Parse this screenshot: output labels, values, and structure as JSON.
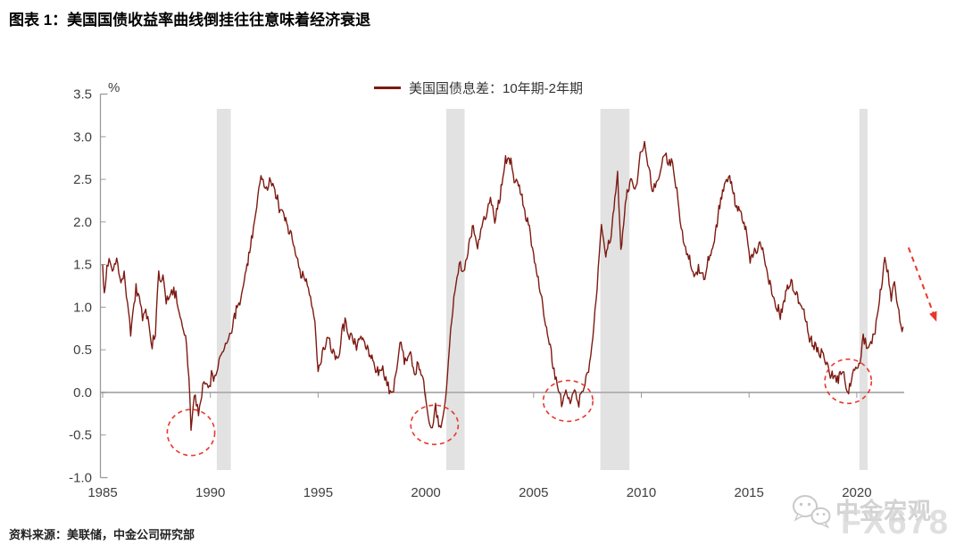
{
  "title": "图表 1：美国国债收益率曲线倒挂往往意味着经济衰退",
  "source": "资料来源：美联储，中金公司研究部",
  "watermark": {
    "icon": "wechat-icon",
    "name": "中金宏观",
    "brand": "FX678"
  },
  "chart_data": {
    "type": "line",
    "legend_label": "美国国债息差：10年期-2年期",
    "unit_label": "%",
    "line_color": "#7d1a12",
    "band_color": "#e2e2e2",
    "highlight_color": "#e8372c",
    "axis_color": "#9a9a9a",
    "zero_line_color": "#b3b3b3",
    "tick_label_color": "#3f3f3f",
    "ylim": [
      -1.0,
      3.5
    ],
    "xlim": [
      1985,
      2022.2
    ],
    "yticks": [
      "3.5",
      "3.0",
      "2.5",
      "2.0",
      "1.5",
      "1.0",
      "0.5",
      "0.0",
      "-0.5",
      "-1.0"
    ],
    "xticks": [
      "1985",
      "1990",
      "1995",
      "2000",
      "2005",
      "2010",
      "2015",
      "2020"
    ],
    "grid": "zero-line-only",
    "legend_position": "top-center",
    "recession_bands": [
      [
        1990.3,
        1990.95
      ],
      [
        2000.95,
        2001.8
      ],
      [
        2008.1,
        2009.45
      ],
      [
        2020.12,
        2020.5
      ]
    ],
    "inversion_circles": [
      {
        "x": 1989.1,
        "y": -0.47,
        "rx_years": 1.1,
        "ry_pct": 0.27
      },
      {
        "x": 2000.4,
        "y": -0.38,
        "rx_years": 1.1,
        "ry_pct": 0.23
      },
      {
        "x": 2006.6,
        "y": -0.1,
        "rx_years": 1.15,
        "ry_pct": 0.24
      },
      {
        "x": 2019.6,
        "y": 0.13,
        "rx_years": 1.08,
        "ry_pct": 0.26
      }
    ],
    "trend_arrow": {
      "from": [
        2022.4,
        1.7
      ],
      "to": [
        2023.7,
        0.83
      ]
    },
    "series": [
      {
        "name": "美国国债息差：10年期-2年期",
        "points": [
          [
            1985.0,
            1.5
          ],
          [
            1985.08,
            1.18
          ],
          [
            1985.2,
            1.48
          ],
          [
            1985.35,
            1.55
          ],
          [
            1985.5,
            1.42
          ],
          [
            1985.65,
            1.55
          ],
          [
            1985.8,
            1.3
          ],
          [
            1986.0,
            1.32
          ],
          [
            1986.15,
            0.95
          ],
          [
            1986.3,
            0.62
          ],
          [
            1986.45,
            0.95
          ],
          [
            1986.55,
            1.2
          ],
          [
            1986.7,
            1.05
          ],
          [
            1986.85,
            0.85
          ],
          [
            1987.0,
            0.92
          ],
          [
            1987.15,
            0.75
          ],
          [
            1987.3,
            0.55
          ],
          [
            1987.45,
            0.65
          ],
          [
            1987.6,
            1.4
          ],
          [
            1987.7,
            1.2
          ],
          [
            1987.8,
            1.35
          ],
          [
            1987.95,
            1.0
          ],
          [
            1988.1,
            1.05
          ],
          [
            1988.25,
            1.15
          ],
          [
            1988.4,
            1.1
          ],
          [
            1988.55,
            0.85
          ],
          [
            1988.7,
            0.72
          ],
          [
            1988.85,
            0.62
          ],
          [
            1989.0,
            0.1
          ],
          [
            1989.1,
            -0.45
          ],
          [
            1989.2,
            -0.2
          ],
          [
            1989.3,
            -0.05
          ],
          [
            1989.45,
            -0.25
          ],
          [
            1989.6,
            -0.05
          ],
          [
            1989.75,
            0.1
          ],
          [
            1989.9,
            0.05
          ],
          [
            1990.05,
            0.15
          ],
          [
            1990.2,
            0.1
          ],
          [
            1990.35,
            0.25
          ],
          [
            1990.55,
            0.4
          ],
          [
            1990.75,
            0.55
          ],
          [
            1990.95,
            0.65
          ],
          [
            1991.2,
            0.95
          ],
          [
            1991.45,
            1.15
          ],
          [
            1991.7,
            1.45
          ],
          [
            1991.95,
            1.85
          ],
          [
            1992.15,
            2.2
          ],
          [
            1992.35,
            2.6
          ],
          [
            1992.55,
            2.42
          ],
          [
            1992.75,
            2.55
          ],
          [
            1992.95,
            2.4
          ],
          [
            1993.2,
            2.2
          ],
          [
            1993.5,
            2.05
          ],
          [
            1993.8,
            1.8
          ],
          [
            1994.0,
            1.62
          ],
          [
            1994.2,
            1.35
          ],
          [
            1994.45,
            1.28
          ],
          [
            1994.65,
            1.1
          ],
          [
            1994.85,
            0.75
          ],
          [
            1995.0,
            0.18
          ],
          [
            1995.2,
            0.42
          ],
          [
            1995.45,
            0.58
          ],
          [
            1995.7,
            0.48
          ],
          [
            1995.9,
            0.35
          ],
          [
            1996.1,
            0.7
          ],
          [
            1996.25,
            0.82
          ],
          [
            1996.45,
            0.68
          ],
          [
            1996.7,
            0.55
          ],
          [
            1996.95,
            0.62
          ],
          [
            1997.2,
            0.5
          ],
          [
            1997.5,
            0.35
          ],
          [
            1997.8,
            0.22
          ],
          [
            1998.0,
            0.25
          ],
          [
            1998.2,
            0.12
          ],
          [
            1998.4,
            -0.03
          ],
          [
            1998.6,
            0.15
          ],
          [
            1998.8,
            0.58
          ],
          [
            1999.0,
            0.32
          ],
          [
            1999.25,
            0.45
          ],
          [
            1999.5,
            0.12
          ],
          [
            1999.65,
            0.33
          ],
          [
            1999.9,
            0.05
          ],
          [
            2000.05,
            -0.2
          ],
          [
            2000.25,
            -0.47
          ],
          [
            2000.45,
            -0.2
          ],
          [
            2000.65,
            -0.5
          ],
          [
            2000.85,
            -0.28
          ],
          [
            2001.0,
            0.15
          ],
          [
            2001.15,
            0.7
          ],
          [
            2001.35,
            1.2
          ],
          [
            2001.55,
            1.5
          ],
          [
            2001.75,
            1.35
          ],
          [
            2001.95,
            1.6
          ],
          [
            2002.2,
            1.95
          ],
          [
            2002.4,
            1.65
          ],
          [
            2002.6,
            1.95
          ],
          [
            2002.8,
            2.1
          ],
          [
            2003.0,
            2.3
          ],
          [
            2003.2,
            2.0
          ],
          [
            2003.45,
            2.35
          ],
          [
            2003.7,
            2.78
          ],
          [
            2003.95,
            2.7
          ],
          [
            2004.1,
            2.45
          ],
          [
            2004.3,
            2.5
          ],
          [
            2004.55,
            2.2
          ],
          [
            2004.8,
            1.95
          ],
          [
            2005.0,
            1.6
          ],
          [
            2005.3,
            1.18
          ],
          [
            2005.6,
            0.72
          ],
          [
            2005.9,
            0.28
          ],
          [
            2006.1,
            0.02
          ],
          [
            2006.3,
            -0.16
          ],
          [
            2006.5,
            0.02
          ],
          [
            2006.7,
            -0.12
          ],
          [
            2006.9,
            -0.04
          ],
          [
            2007.1,
            -0.16
          ],
          [
            2007.3,
            -0.03
          ],
          [
            2007.55,
            0.25
          ],
          [
            2007.75,
            0.65
          ],
          [
            2007.95,
            1.15
          ],
          [
            2008.15,
            1.95
          ],
          [
            2008.35,
            1.55
          ],
          [
            2008.6,
            1.85
          ],
          [
            2008.9,
            2.6
          ],
          [
            2009.05,
            1.6
          ],
          [
            2009.3,
            2.3
          ],
          [
            2009.55,
            2.55
          ],
          [
            2009.75,
            2.35
          ],
          [
            2009.95,
            2.75
          ],
          [
            2010.15,
            2.88
          ],
          [
            2010.35,
            2.6
          ],
          [
            2010.55,
            2.35
          ],
          [
            2010.75,
            2.45
          ],
          [
            2010.9,
            2.6
          ],
          [
            2011.1,
            2.85
          ],
          [
            2011.3,
            2.7
          ],
          [
            2011.5,
            2.6
          ],
          [
            2011.65,
            2.3
          ],
          [
            2011.8,
            1.95
          ],
          [
            2012.0,
            1.75
          ],
          [
            2012.2,
            1.55
          ],
          [
            2012.45,
            1.3
          ],
          [
            2012.65,
            1.45
          ],
          [
            2012.9,
            1.38
          ],
          [
            2013.1,
            1.6
          ],
          [
            2013.35,
            1.75
          ],
          [
            2013.6,
            2.2
          ],
          [
            2013.9,
            2.52
          ],
          [
            2014.1,
            2.6
          ],
          [
            2014.35,
            2.3
          ],
          [
            2014.6,
            2.15
          ],
          [
            2014.85,
            1.9
          ],
          [
            2015.05,
            1.5
          ],
          [
            2015.3,
            1.62
          ],
          [
            2015.55,
            1.7
          ],
          [
            2015.8,
            1.45
          ],
          [
            2016.1,
            1.15
          ],
          [
            2016.45,
            0.88
          ],
          [
            2016.7,
            1.15
          ],
          [
            2016.95,
            1.32
          ],
          [
            2017.25,
            1.15
          ],
          [
            2017.55,
            0.98
          ],
          [
            2017.85,
            0.65
          ],
          [
            2018.1,
            0.58
          ],
          [
            2018.4,
            0.42
          ],
          [
            2018.65,
            0.28
          ],
          [
            2018.9,
            0.18
          ],
          [
            2019.1,
            0.16
          ],
          [
            2019.35,
            0.2
          ],
          [
            2019.5,
            0.05
          ],
          [
            2019.62,
            -0.02
          ],
          [
            2019.75,
            0.13
          ],
          [
            2019.95,
            0.25
          ],
          [
            2020.15,
            0.4
          ],
          [
            2020.3,
            0.6
          ],
          [
            2020.5,
            0.48
          ],
          [
            2020.7,
            0.55
          ],
          [
            2020.9,
            0.78
          ],
          [
            2021.05,
            1.05
          ],
          [
            2021.3,
            1.55
          ],
          [
            2021.45,
            1.35
          ],
          [
            2021.6,
            1.1
          ],
          [
            2021.75,
            1.25
          ],
          [
            2021.9,
            1.02
          ],
          [
            2022.05,
            0.85
          ],
          [
            2022.15,
            0.77
          ]
        ]
      }
    ]
  }
}
